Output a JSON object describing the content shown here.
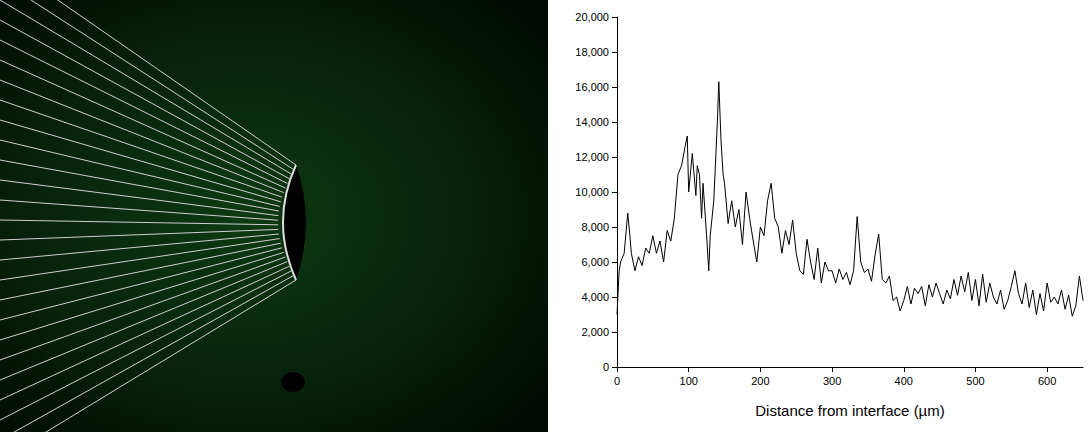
{
  "chart_data": {
    "type": "line",
    "xlabel": "Distance from interface (µm)",
    "x": [
      0,
      3,
      5,
      10,
      15,
      18,
      20,
      25,
      30,
      35,
      40,
      45,
      50,
      55,
      60,
      65,
      70,
      75,
      80,
      85,
      90,
      95,
      98,
      100,
      105,
      110,
      112,
      115,
      118,
      120,
      125,
      128,
      130,
      135,
      140,
      142,
      145,
      148,
      150,
      155,
      160,
      165,
      170,
      175,
      180,
      185,
      190,
      195,
      200,
      205,
      210,
      215,
      220,
      225,
      230,
      235,
      240,
      245,
      250,
      255,
      260,
      265,
      270,
      275,
      280,
      285,
      290,
      295,
      300,
      305,
      310,
      315,
      320,
      325,
      330,
      335,
      340,
      345,
      350,
      355,
      360,
      365,
      370,
      375,
      380,
      385,
      390,
      395,
      400,
      405,
      410,
      415,
      420,
      425,
      430,
      435,
      440,
      445,
      450,
      455,
      460,
      465,
      470,
      475,
      480,
      485,
      490,
      495,
      500,
      505,
      510,
      515,
      520,
      525,
      530,
      535,
      540,
      545,
      550,
      555,
      560,
      565,
      570,
      575,
      580,
      585,
      590,
      595,
      600,
      605,
      610,
      615,
      620,
      625,
      630,
      635,
      640,
      645,
      650
    ],
    "values": [
      3000,
      5500,
      6000,
      6500,
      8800,
      7500,
      6500,
      5500,
      6300,
      5800,
      6800,
      6500,
      7500,
      6500,
      7200,
      6000,
      7800,
      7200,
      8500,
      11000,
      11500,
      12600,
      13200,
      10000,
      12200,
      9800,
      11500,
      11000,
      8500,
      10500,
      7500,
      5500,
      7500,
      9500,
      14000,
      16300,
      13000,
      11000,
      10500,
      8200,
      9500,
      8000,
      9000,
      7000,
      10000,
      8500,
      7200,
      6000,
      8000,
      7500,
      9500,
      10500,
      8500,
      8000,
      6500,
      7800,
      7000,
      8400,
      6500,
      5500,
      5300,
      7300,
      6000,
      5000,
      6800,
      4800,
      6000,
      5500,
      5500,
      4800,
      5600,
      5000,
      5400,
      4700,
      5500,
      8600,
      6000,
      5400,
      5600,
      4900,
      6400,
      7600,
      5000,
      4800,
      5200,
      3800,
      4000,
      3200,
      3800,
      4600,
      3600,
      4500,
      4200,
      4600,
      3500,
      4700,
      4000,
      4800,
      4200,
      3600,
      4400,
      3900,
      5000,
      4100,
      5200,
      4300,
      5400,
      3800,
      5000,
      3500,
      5300,
      3700,
      4800,
      4000,
      3600,
      4400,
      3300,
      3800,
      4600,
      5500,
      4200,
      3600,
      4800,
      3400,
      4400,
      3000,
      4200,
      3200,
      4800,
      3700,
      4000,
      3600,
      4400,
      3300,
      4100,
      2900,
      3500,
      5200,
      3800
    ],
    "color": "#000000",
    "xlim": [
      0,
      650
    ],
    "xticks": [
      0,
      100,
      200,
      300,
      400,
      500,
      600
    ],
    "ylim": [
      0,
      20000
    ],
    "yticks": [
      0,
      2000,
      4000,
      6000,
      8000,
      10000,
      12000,
      14000,
      16000,
      18000,
      20000
    ],
    "grid": false
  }
}
